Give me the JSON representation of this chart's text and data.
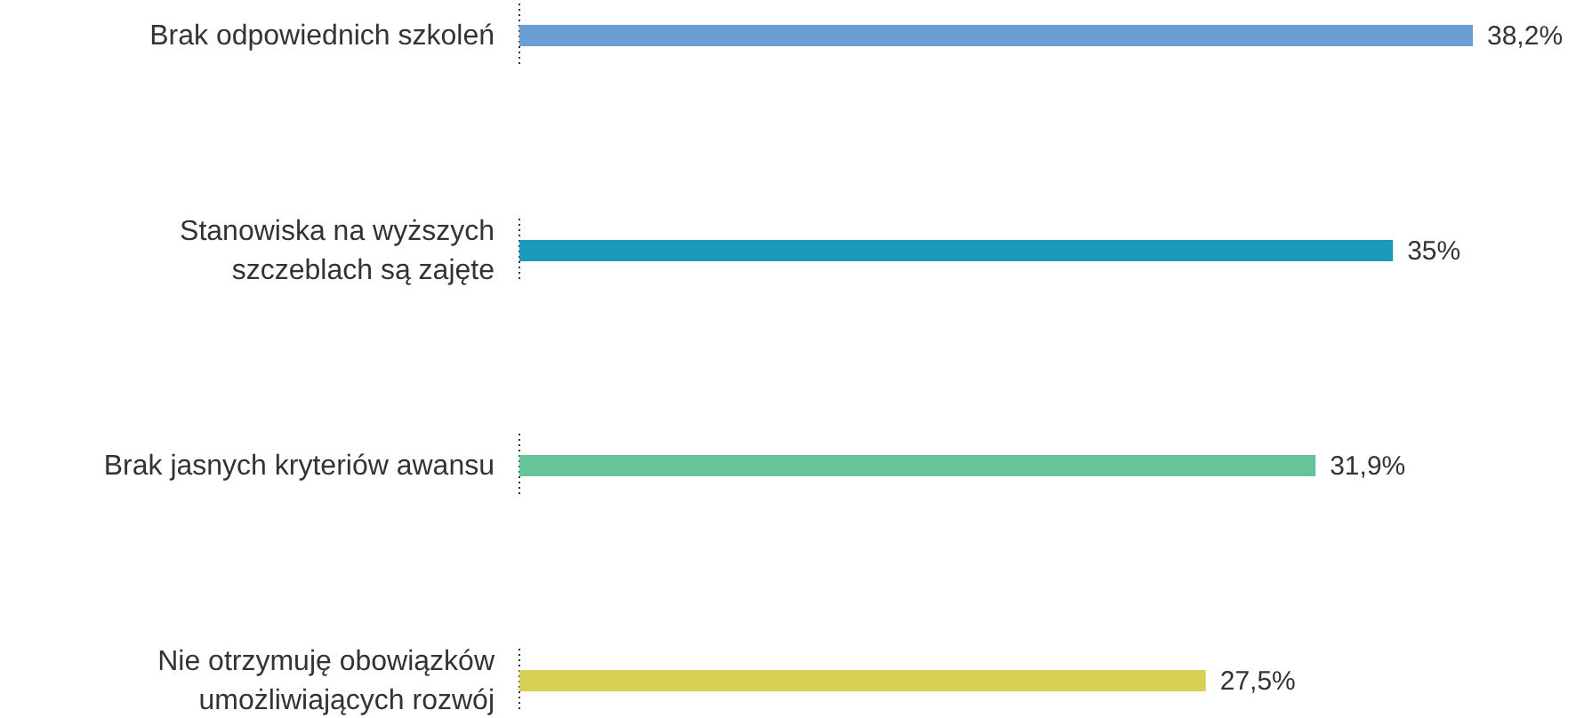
{
  "chart_data": {
    "type": "bar",
    "orientation": "horizontal",
    "categories": [
      "Brak odpowiednich szkoleń",
      "Stanowiska na wyższych szczeblach są zajęte",
      "Brak jasnych kryteriów awansu",
      "Nie otrzymuję obowiązków umożliwiających rozwój"
    ],
    "values": [
      38.2,
      35,
      31.9,
      27.5
    ],
    "colors": [
      "#6b9fd4",
      "#1a9bbb",
      "#66c49a",
      "#d8cf55"
    ],
    "value_labels": [
      "38,2%",
      "35%",
      "31,9%",
      "27,5%"
    ]
  }
}
